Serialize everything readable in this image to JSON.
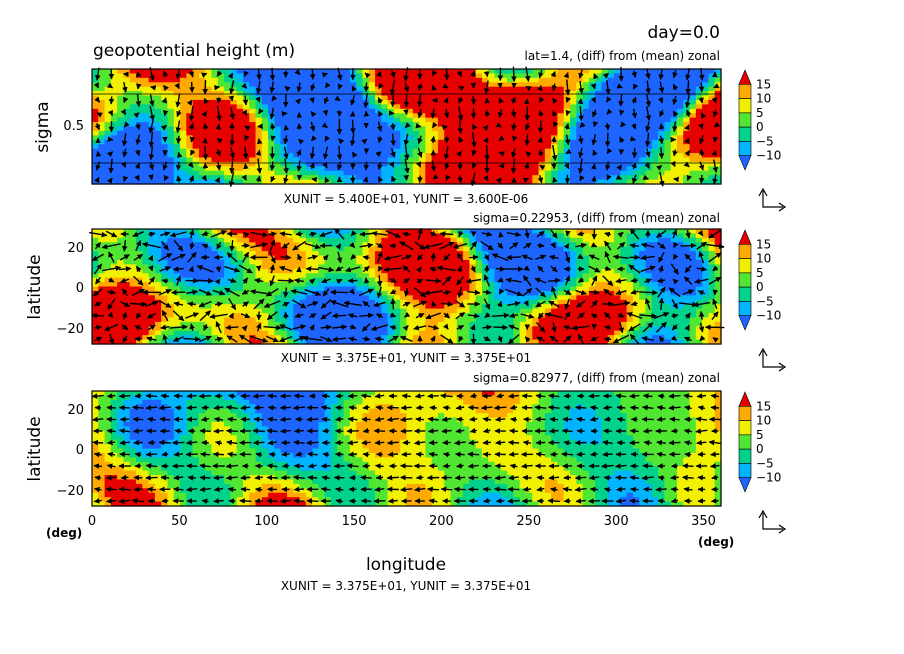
{
  "figure": {
    "day_label": "day=0.0",
    "title": "geopotential height (m)",
    "xlabel": "longitude",
    "xunit_label": "(deg)",
    "yunit_label": "(deg)",
    "palette": [
      "#1e64ff",
      "#00b4ff",
      "#00d28c",
      "#50e632",
      "#f0f000",
      "#ffaa00",
      "#e60000"
    ],
    "colorbar_ticks": [
      "15",
      "10",
      "5",
      "0",
      "−5",
      "−10"
    ]
  },
  "chart_data": [
    {
      "type": "contourf+vector",
      "subtitle": "lat=1.4, (diff) from (mean) zonal",
      "ylabel": "sigma",
      "yticks": [
        "0.5"
      ],
      "xlim": [
        0,
        360
      ],
      "ylim": [
        0,
        1
      ],
      "levels": [
        -10,
        -5,
        0,
        5,
        10,
        15
      ],
      "unit_caption": "XUNIT = 5.400E+01, YUNIT = 3.600E-06"
    },
    {
      "type": "contourf+vector",
      "subtitle": "sigma=0.22953, (diff) from (mean) zonal",
      "ylabel": "latitude",
      "yticks": [
        "20",
        "0",
        "−20"
      ],
      "xlim": [
        0,
        360
      ],
      "ylim": [
        -28,
        28
      ],
      "levels": [
        -10,
        -5,
        0,
        5,
        10,
        15
      ],
      "unit_caption": "XUNIT = 3.375E+01, YUNIT = 3.375E+01"
    },
    {
      "type": "contourf+vector",
      "subtitle": "sigma=0.82977, (diff) from (mean) zonal",
      "ylabel": "latitude",
      "yticks": [
        "20",
        "0",
        "−20"
      ],
      "xticks": [
        "0",
        "50",
        "100",
        "150",
        "200",
        "250",
        "300",
        "350"
      ],
      "xlim": [
        0,
        360
      ],
      "ylim": [
        -28,
        28
      ],
      "levels": [
        -10,
        -5,
        0,
        5,
        10,
        15
      ],
      "unit_caption": "XUNIT = 3.375E+01, YUNIT = 3.375E+01"
    }
  ]
}
